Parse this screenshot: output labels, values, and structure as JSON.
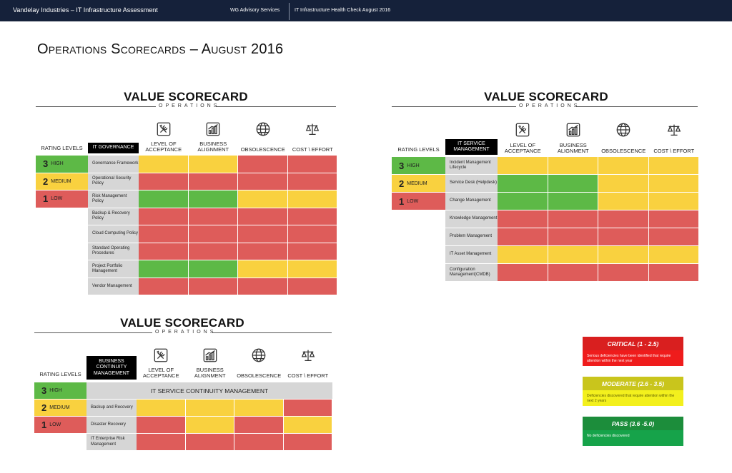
{
  "header": {
    "left": "Vandelay Industries – IT Infrastructure Assessment",
    "center": "WG Advisory Services",
    "right": "IT Infrastructure Health Check August 2016"
  },
  "page_title": "Operations Scorecards – August 2016",
  "colors": {
    "high": "#5db946",
    "medium": "#f9d13f",
    "low": "#de5c5a",
    "label_bg": "#d6d6d6",
    "header_bg": "#15213a"
  },
  "ratings": [
    {
      "num": "3",
      "label": "High",
      "color": "#5db946"
    },
    {
      "num": "2",
      "label": "Medium",
      "color": "#f9d13f"
    },
    {
      "num": "1",
      "label": "Low",
      "color": "#de5c5a"
    }
  ],
  "rating_levels_label": "RATING LEVELS",
  "scorecard_title": "VALUE SCORECARD",
  "scorecard_subtitle": "OPERATIONS",
  "columns": [
    {
      "label": "LEVEL OF ACCEPTANCE",
      "icon": "tools-icon"
    },
    {
      "label": "BUSINESS ALIGNMENT",
      "icon": "growth-chart-icon"
    },
    {
      "label": "OBSOLESCENCE",
      "icon": "globe-icon"
    },
    {
      "label": "COST \\ EFFORT",
      "icon": "scales-icon"
    }
  ],
  "scorecards": [
    {
      "id": "governance",
      "category": "IT GOVERNANCE",
      "rows": [
        {
          "label": "Governance Framework",
          "ratings": [
            "M",
            "M",
            "L",
            "L"
          ]
        },
        {
          "label": "Operational Security Policy",
          "ratings": [
            "L",
            "L",
            "L",
            "L"
          ]
        },
        {
          "label": "Risk Management Policy",
          "ratings": [
            "H",
            "H",
            "M",
            "M"
          ]
        },
        {
          "label": "Backup & Recovery Policy",
          "ratings": [
            "L",
            "L",
            "L",
            "L"
          ]
        },
        {
          "label": "Cloud Computing Policy",
          "ratings": [
            "L",
            "L",
            "L",
            "L"
          ]
        },
        {
          "label": "Standard Operating Procedures",
          "ratings": [
            "L",
            "L",
            "L",
            "L"
          ]
        },
        {
          "label": "Project Portfolio Management",
          "ratings": [
            "H",
            "H",
            "M",
            "M"
          ]
        },
        {
          "label": "Vendor Management",
          "ratings": [
            "L",
            "L",
            "L",
            "L"
          ]
        }
      ]
    },
    {
      "id": "service-management",
      "category": "IT SERVICE MANAGEMENT",
      "rows": [
        {
          "label": "Incident Management Lifecycle",
          "ratings": [
            "M",
            "M",
            "M",
            "M"
          ]
        },
        {
          "label": "Service Desk (Helpdesk)",
          "ratings": [
            "H",
            "H",
            "M",
            "M"
          ]
        },
        {
          "label": "Change Management",
          "ratings": [
            "H",
            "H",
            "M",
            "M"
          ]
        },
        {
          "label": "Knowledge Management",
          "ratings": [
            "L",
            "L",
            "L",
            "L"
          ]
        },
        {
          "label": "Problem Management",
          "ratings": [
            "L",
            "L",
            "L",
            "L"
          ]
        },
        {
          "label": "IT Asset Management",
          "ratings": [
            "M",
            "M",
            "M",
            "M"
          ]
        },
        {
          "label": "Configuration Management(CMDB)",
          "ratings": [
            "L",
            "L",
            "L",
            "L"
          ]
        }
      ]
    },
    {
      "id": "continuity",
      "category": "BUSINESS CONTINUITY MANAGEMENT",
      "span_label": "IT SERVICE CONTINUITY MANAGEMENT",
      "rows": [
        {
          "label": "Backup and Recovery",
          "ratings": [
            "M",
            "M",
            "M",
            "L"
          ]
        },
        {
          "label": "Disaster Recovery",
          "ratings": [
            "L",
            "M",
            "L",
            "M"
          ]
        },
        {
          "label": "IT Enterprise Risk Management",
          "ratings": [
            "L",
            "L",
            "L",
            "L"
          ]
        }
      ]
    }
  ],
  "legend": [
    {
      "title": "CRITICAL (1 - 2.5)",
      "text": "Serious deficiencies have been identified that require attention within the next year",
      "head_color": "#d91f1f",
      "body_color": "#ef1c1c",
      "text_color": "#ffffff"
    },
    {
      "title": "MODERATE (2.6 - 3.5)",
      "text": "Deficiencies discovered that require attention within the next 2 years",
      "head_color": "#c9c51c",
      "body_color": "#f3f01d",
      "text_color": "#5a5a00"
    },
    {
      "title": "PASS (3.6 -5.0)",
      "text": "No deficiencies discovered",
      "head_color": "#1c8d3b",
      "body_color": "#16a34a",
      "text_color": "#ffffff"
    }
  ]
}
